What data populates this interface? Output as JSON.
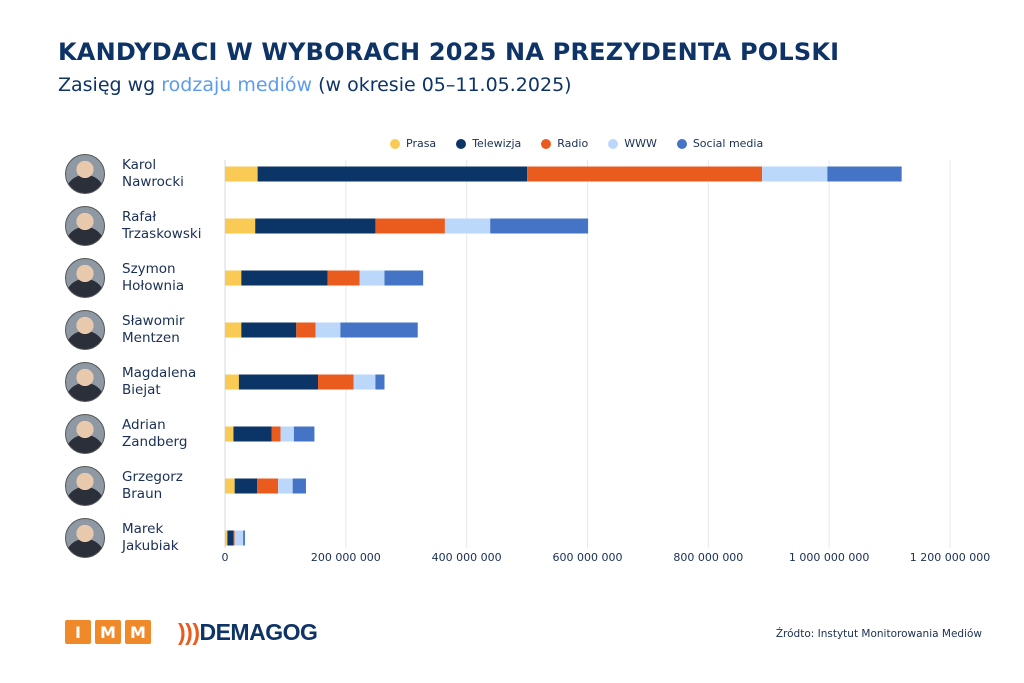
{
  "header": {
    "title": "KANDYDACI W WYBORACH 2025 NA PREZYDENTA POLSKI",
    "subtitle_pre": "Zasięg wg ",
    "subtitle_accent": "rodzaju mediów",
    "subtitle_post": " (w okresie 05–11.05.2025)"
  },
  "footer": {
    "source": "Źródto: Instytut Monitorowania Mediów",
    "logo_imm": [
      "I",
      "M",
      "M"
    ],
    "logo_demagog": "DEMAGOG"
  },
  "chart_data": {
    "type": "bar",
    "orientation": "horizontal",
    "stacked": true,
    "categories": [
      "Karol\nNawrocki",
      "Rafał\nTrzaskowski",
      "Szymon\nHołownia",
      "Sławomir\nMentzen",
      "Magdalena\nBiejat",
      "Adrian\nZandberg",
      "Grzegorz\nBraun",
      "Marek\nJakubiak"
    ],
    "series": [
      {
        "name": "Prasa",
        "color": "#f9cb55",
        "values": [
          54000000,
          50000000,
          27000000,
          27000000,
          23000000,
          14000000,
          16000000,
          4000000
        ]
      },
      {
        "name": "Telewizja",
        "color": "#0b3566",
        "values": [
          446000000,
          199000000,
          143000000,
          91000000,
          131000000,
          63000000,
          37000000,
          10000000
        ]
      },
      {
        "name": "Radio",
        "color": "#ea5b1e",
        "values": [
          389000000,
          115000000,
          53000000,
          32000000,
          59000000,
          15000000,
          35000000,
          2000000
        ]
      },
      {
        "name": "WWW",
        "color": "#bbd8fb",
        "values": [
          108000000,
          75000000,
          41000000,
          41000000,
          36000000,
          22000000,
          24000000,
          14000000
        ]
      },
      {
        "name": "Social media",
        "color": "#4573c6",
        "values": [
          123000000,
          162000000,
          64000000,
          128000000,
          15000000,
          34000000,
          22000000,
          3000000
        ]
      }
    ],
    "xlim": [
      0,
      1200000000
    ],
    "xticks": [
      0,
      200000000,
      400000000,
      600000000,
      800000000,
      1000000000,
      1200000000
    ],
    "xtick_labels": [
      "0",
      "200 000 000",
      "400 000 000",
      "600 000 000",
      "800 000 000",
      "1 000 000 000",
      "1 200 000 000"
    ],
    "grid": "vertical",
    "legend": "top"
  }
}
